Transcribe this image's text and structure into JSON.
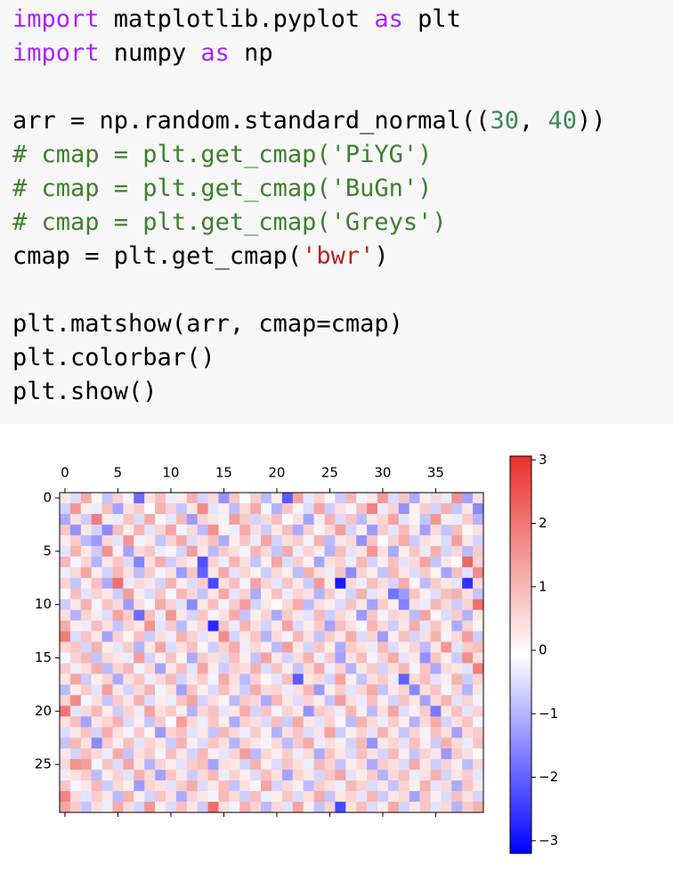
{
  "code": {
    "lines": [
      [
        {
          "text": "import",
          "kind": "keyword"
        },
        {
          "text": " matplotlib.pyplot "
        },
        {
          "text": "as",
          "kind": "keyword"
        },
        {
          "text": " plt"
        }
      ],
      [
        {
          "text": "import",
          "kind": "keyword"
        },
        {
          "text": " numpy "
        },
        {
          "text": "as",
          "kind": "keyword"
        },
        {
          "text": " np"
        }
      ],
      [],
      [
        {
          "text": "arr = np.random.standard_normal(("
        },
        {
          "text": "30",
          "kind": "number"
        },
        {
          "text": ", "
        },
        {
          "text": "40",
          "kind": "number"
        },
        {
          "text": "))"
        }
      ],
      [
        {
          "text": "# cmap = plt.get_cmap('PiYG')",
          "kind": "comment"
        }
      ],
      [
        {
          "text": "# cmap = plt.get_cmap('BuGn')",
          "kind": "comment"
        }
      ],
      [
        {
          "text": "# cmap = plt.get_cmap('Greys')",
          "kind": "comment"
        }
      ],
      [
        {
          "text": "cmap = plt.get_cmap("
        },
        {
          "text": "'bwr'",
          "kind": "string"
        },
        {
          "text": ")"
        }
      ],
      [],
      [
        {
          "text": "plt.matshow(arr, cmap=cmap)"
        }
      ],
      [
        {
          "text": "plt.colorbar()"
        }
      ],
      [
        {
          "text": "plt.show()"
        }
      ]
    ]
  },
  "chart_data": {
    "type": "heatmap",
    "xticks": [
      0,
      5,
      10,
      15,
      20,
      25,
      30,
      35
    ],
    "yticks": [
      0,
      5,
      10,
      15,
      20,
      25
    ],
    "xlim": [
      -0.5,
      39.5
    ],
    "ylim": [
      29.5,
      -0.5
    ],
    "zlim": [
      -3.2,
      3.06
    ],
    "zticks": [
      {
        "value": -3,
        "label": "−3"
      },
      {
        "value": -2,
        "label": "−2"
      },
      {
        "value": -1,
        "label": "−1"
      },
      0,
      1,
      2,
      3
    ],
    "colormap": [
      "#0000ff",
      "#ffffff",
      "#e8302c"
    ],
    "values": [
      [
        0.3,
        -0.5,
        1.2,
        0.1,
        -0.8,
        0.6,
        -0.2,
        -1.9,
        0.4,
        0.9,
        -0.3,
        0.2,
        1.1,
        -0.6,
        0.5,
        -1.4,
        0.8,
        -0.1,
        0.7,
        -0.9,
        0.2,
        -2.1,
        1.3,
        -0.4,
        0.6,
        0.1,
        -0.7,
        1.0,
        -0.2,
        0.3,
        1.4,
        -0.5,
        0.8,
        -1.1,
        0.2,
        0.5,
        -0.3,
        1.6,
        -1.2,
        0.4
      ],
      [
        -0.6,
        1.5,
        0.2,
        -0.3,
        0.9,
        -1.2,
        0.4,
        0.7,
        -0.1,
        1.1,
        0.6,
        -0.8,
        0.3,
        1.7,
        -0.4,
        0.2,
        -0.9,
        0.5,
        1.2,
        -0.2,
        -1.0,
        0.8,
        0.1,
        -0.5,
        1.3,
        -0.7,
        0.4,
        -0.2,
        0.9,
        1.8,
        -0.3,
        0.6,
        -1.4,
        0.2,
        0.7,
        -0.6,
        1.1,
        -0.8,
        0.3,
        -1.5
      ],
      [
        -1.1,
        0.4,
        -0.7,
        1.9,
        0.2,
        -0.3,
        0.8,
        -0.5,
        1.2,
        0.1,
        -0.4,
        1.0,
        -1.3,
        0.6,
        0.3,
        -0.2,
        1.4,
        0.7,
        -0.6,
        0.5,
        0.9,
        -0.1,
        0.4,
        -1.2,
        0.2,
        1.1,
        -0.5,
        0.8,
        -0.9,
        0.3,
        0.6,
        1.3,
        -0.4,
        0.1,
        -0.8,
        1.5,
        0.2,
        -0.3,
        0.7,
        -1.0
      ],
      [
        0.8,
        -1.4,
        0.3,
        -0.6,
        -1.5,
        0.9,
        0.2,
        1.1,
        -0.4,
        0.6,
        1.3,
        -0.2,
        0.5,
        -0.9,
        1.6,
        0.1,
        -0.3,
        1.2,
        0.4,
        -0.7,
        0.3,
        0.9,
        -1.1,
        0.6,
        -0.2,
        0.5,
        1.4,
        -0.6,
        0.2,
        -1.3,
        0.7,
        -0.4,
        1.0,
        0.3,
        -1.2,
        0.5,
        -0.8,
        0.9,
        0.1,
        0.4
      ],
      [
        0.2,
        0.7,
        -0.9,
        -1.3,
        0.5,
        -0.4,
        1.5,
        -0.2,
        0.3,
        -0.8,
        0.6,
        1.2,
        -0.5,
        0.4,
        0.9,
        -1.1,
        0.2,
        0.8,
        -0.3,
        1.3,
        -0.6,
        0.4,
        0.7,
        -0.2,
        1.1,
        -0.9,
        0.3,
        0.5,
        -1.4,
        0.8,
        -0.1,
        0.6,
        1.2,
        -0.7,
        0.4,
        0.2,
        -0.5,
        1.4,
        0.3,
        -0.6
      ],
      [
        -0.4,
        1.1,
        0.3,
        -0.7,
        1.6,
        0.2,
        -1.2,
        0.5,
        0.8,
        -0.3,
        0.1,
        -0.6,
        1.4,
        0.3,
        -0.9,
        0.7,
        0.4,
        -0.2,
        1.0,
        0.5,
        -0.8,
        1.2,
        -0.3,
        0.6,
        0.2,
        -1.0,
        0.9,
        -0.4,
        0.3,
        1.5,
        0.4,
        -1.1,
        0.2,
        0.8,
        -0.3,
        1.1,
        -0.6,
        0.5,
        -0.9,
        0.7
      ],
      [
        1.0,
        -0.2,
        0.6,
        -1.0,
        0.3,
        0.8,
        -0.5,
        -1.6,
        0.4,
        1.2,
        -0.7,
        0.5,
        0.2,
        -2.2,
        0.6,
        -0.3,
        1.1,
        0.4,
        -0.8,
        0.2,
        1.3,
        -0.5,
        0.7,
        0.1,
        -1.2,
        0.4,
        0.6,
        -0.3,
        1.0,
        -0.6,
        0.2,
        0.9,
        -0.4,
        0.5,
        1.3,
        -0.8,
        0.3,
        -0.1,
        2.2,
        0.6
      ],
      [
        -0.3,
        0.5,
        1.3,
        0.2,
        -0.6,
        1.0,
        0.4,
        -0.9,
        0.7,
        -0.2,
        0.4,
        -1.3,
        0.8,
        -2.0,
        0.3,
        1.2,
        -0.4,
        0.6,
        0.1,
        -0.7,
        0.5,
        0.2,
        -0.9,
        1.1,
        0.4,
        -0.3,
        0.8,
        -1.5,
        0.6,
        0.2,
        -0.8,
        1.0,
        0.3,
        -0.5,
        0.7,
        0.1,
        -1.2,
        0.9,
        -0.4,
        1.7
      ],
      [
        0.6,
        -0.8,
        0.2,
        0.9,
        -1.1,
        2.1,
        -0.3,
        0.5,
        0.3,
        -0.6,
        1.1,
        0.2,
        -0.5,
        0.7,
        -2.3,
        0.4,
        0.9,
        -0.2,
        1.3,
        0.6,
        -0.4,
        0.8,
        0.3,
        -0.7,
        1.4,
        0.2,
        -2.9,
        0.5,
        -0.3,
        0.9,
        0.4,
        -0.6,
        1.2,
        0.1,
        -0.9,
        0.7,
        0.3,
        -0.4,
        -2.6,
        0.5
      ],
      [
        0.1,
        0.9,
        -0.4,
        0.6,
        0.3,
        -0.7,
        1.4,
        0.2,
        -0.5,
        0.8,
        -0.2,
        1.0,
        0.5,
        -0.8,
        0.3,
        1.2,
        -0.4,
        0.6,
        -1.1,
        0.2,
        0.9,
        -0.3,
        0.6,
        0.4,
        -1.0,
        0.7,
        0.2,
        -0.6,
        1.1,
        -0.4,
        0.3,
        -1.8,
        -1.3,
        0.8,
        0.2,
        -0.5,
        0.9,
        1.1,
        0.4,
        -0.8
      ],
      [
        -0.7,
        0.3,
        1.1,
        -0.2,
        0.8,
        0.5,
        -1.3,
        0.4,
        0.1,
        1.2,
        0.6,
        -0.4,
        -1.5,
        0.3,
        0.9,
        -0.2,
        0.7,
        1.4,
        -0.6,
        0.3,
        -0.1,
        0.5,
        1.2,
        -0.9,
        0.4,
        0.2,
        -0.5,
        0.8,
        0.3,
        -1.2,
        0.7,
        0.2,
        -1.6,
        0.4,
        -0.3,
        1.0,
        0.5,
        -0.7,
        0.6,
        2.1
      ],
      [
        0.4,
        -1.0,
        0.6,
        0.2,
        -0.5,
        1.3,
        0.7,
        -1.9,
        0.9,
        -0.3,
        1.5,
        0.3,
        -0.6,
        0.8,
        -0.2,
        0.4,
        1.2,
        -0.8,
        0.2,
        0.6,
        -1.1,
        0.7,
        0.3,
        -0.4,
        1.0,
        -0.7,
        0.5,
        0.2,
        -1.3,
        0.8,
        -0.2,
        0.6,
        0.4,
        -0.9,
        1.3,
        0.1,
        -0.5,
        0.7,
        -1.0,
        0.3
      ],
      [
        1.2,
        0.2,
        -0.3,
        0.9,
        0.4,
        -0.8,
        0.6,
        0.3,
        1.5,
        -0.4,
        0.7,
        -0.9,
        0.2,
        0.5,
        -2.7,
        0.8,
        -0.3,
        1.1,
        0.4,
        -0.6,
        0.3,
        1.3,
        -0.5,
        0.2,
        0.7,
        -1.2,
        0.9,
        0.4,
        -0.2,
        1.0,
        0.5,
        -0.7,
        0.3,
        1.2,
        -0.4,
        0.8,
        0.2,
        -1.1,
        0.6,
        0.1
      ],
      [
        1.9,
        -0.5,
        0.8,
        0.3,
        -1.2,
        0.6,
        0.1,
        0.9,
        -0.7,
        0.4,
        -0.3,
        1.1,
        0.6,
        -0.4,
        0.2,
        1.7,
        -0.6,
        0.3,
        0.8,
        -1.0,
        0.5,
        -0.2,
        1.0,
        0.4,
        -0.8,
        0.7,
        0.3,
        1.2,
        -0.5,
        0.6,
        -1.3,
        0.2,
        0.9,
        -0.6,
        0.4,
        1.1,
        -0.2,
        0.5,
        1.4,
        -0.7
      ],
      [
        0.5,
        0.8,
        -0.6,
        1.1,
        0.2,
        -0.4,
        0.7,
        -1.0,
        0.3,
        1.3,
        -0.5,
        0.4,
        0.9,
        0.1,
        -0.7,
        0.6,
        1.2,
        -0.3,
        0.5,
        0.2,
        -0.9,
        1.4,
        0.3,
        -0.6,
        0.8,
        0.2,
        -1.1,
        0.7,
        0.4,
        -0.3,
        1.0,
        -0.5,
        0.2,
        0.6,
        -0.9,
        0.3,
        1.5,
        -0.4,
        0.7,
        0.9
      ],
      [
        -0.2,
        0.6,
        1.0,
        -0.8,
        0.5,
        0.3,
        -0.3,
        1.4,
        -0.6,
        0.2,
        0.8,
        0.1,
        -1.1,
        0.7,
        0.4,
        -0.5,
        0.9,
        0.2,
        -0.8,
        1.3,
        0.3,
        -0.6,
        0.5,
        1.1,
        -0.3,
        0.7,
        -1.2,
        0.4,
        0.9,
        -0.2,
        0.6,
        1.2,
        -0.4,
        0.3,
        -1.4,
        0.8,
        0.2,
        -0.7,
        1.6,
        0.4
      ],
      [
        0.7,
        -0.3,
        0.4,
        1.2,
        -0.9,
        0.6,
        1.0,
        -0.2,
        0.5,
        -1.2,
        0.3,
        0.9,
        -0.4,
        1.3,
        0.2,
        -0.7,
        0.6,
        0.4,
        1.1,
        -0.5,
        0.8,
        0.2,
        -0.8,
        0.5,
        1.2,
        -0.3,
        0.6,
        -1.0,
        0.3,
        0.7,
        -0.6,
        0.4,
        1.0,
        -0.2,
        0.8,
        -1.1,
        0.5,
        0.3,
        -0.4,
        1.9
      ],
      [
        0.3,
        1.3,
        -0.7,
        0.2,
        0.6,
        -1.1,
        0.4,
        0.8,
        -0.3,
        0.5,
        1.0,
        -0.6,
        0.3,
        0.7,
        -0.2,
        1.2,
        0.4,
        -0.9,
        0.6,
        0.1,
        -0.4,
        0.9,
        -2.1,
        0.3,
        0.5,
        -0.6,
        1.3,
        0.2,
        -0.8,
        0.4,
        0.7,
        -0.3,
        -2.0,
        0.5,
        0.9,
        -0.4,
        0.2,
        1.1,
        -0.7,
        0.6
      ],
      [
        -0.9,
        0.2,
        0.7,
        -0.4,
        1.4,
        0.3,
        -0.6,
        0.5,
        1.1,
        -0.2,
        0.4,
        -1.2,
        0.8,
        0.2,
        -0.5,
        0.9,
        0.3,
        -0.7,
        1.2,
        0.5,
        0.6,
        -0.3,
        0.4,
        1.0,
        -1.3,
        0.2,
        0.7,
        -0.4,
        0.5,
        1.2,
        -0.8,
        0.3,
        0.6,
        -1.5,
        0.4,
        0.8,
        -0.2,
        0.6,
        -1.0,
        0.3
      ],
      [
        0.6,
        1.7,
        -0.2,
        0.4,
        -0.8,
        0.7,
        0.3,
        1.1,
        -0.5,
        0.2,
        -0.3,
        0.8,
        1.3,
        -0.6,
        0.4,
        0.1,
        -0.9,
        0.7,
        0.5,
        -1.1,
        1.0,
        0.3,
        -0.5,
        0.6,
        0.2,
        -0.8,
        1.4,
        0.4,
        -0.3,
        0.9,
        0.2,
        -0.6,
        0.8,
        0.3,
        -1.2,
        0.5,
        1.1,
        -0.4,
        0.6,
        -0.2
      ],
      [
        2.0,
        -0.4,
        0.5,
        1.0,
        0.2,
        -0.7,
        0.6,
        -0.3,
        1.3,
        0.4,
        0.7,
        0.2,
        -1.0,
        0.5,
        0.9,
        -0.4,
        0.3,
        1.2,
        -0.6,
        0.8,
        -0.2,
        0.6,
        0.3,
        -1.4,
        0.7,
        0.5,
        -0.3,
        1.0,
        0.2,
        -0.9,
        0.4,
        1.3,
        -0.5,
        0.2,
        0.7,
        -1.7,
        0.3,
        0.9,
        -0.4,
        0.6
      ],
      [
        0.4,
        0.9,
        -1.2,
        0.3,
        0.6,
        1.1,
        -0.5,
        0.2,
        -0.8,
        0.7,
        -0.1,
        1.4,
        0.5,
        -0.3,
        0.8,
        0.2,
        -1.1,
        0.6,
        0.4,
        -0.5,
        0.9,
        -0.7,
        1.2,
        0.3,
        -0.4,
        0.6,
        0.1,
        -0.9,
        1.1,
        0.5,
        -0.3,
        0.7,
        0.2,
        -1.0,
        0.5,
        1.2,
        -0.6,
        0.4,
        0.8,
        -0.2
      ],
      [
        -0.5,
        0.3,
        0.8,
        -0.6,
        1.2,
        0.4,
        -0.2,
        0.7,
        0.1,
        -1.3,
        0.6,
        0.9,
        -0.4,
        0.3,
        -0.8,
        1.0,
        0.5,
        -0.3,
        0.7,
        0.2,
        -1.0,
        0.4,
        0.8,
        -0.5,
        0.3,
        1.3,
        -0.7,
        0.2,
        0.6,
        -0.4,
        1.1,
        0.3,
        -0.8,
        0.6,
        -0.2,
        0.9,
        0.4,
        -1.2,
        0.5,
        0.7
      ],
      [
        -0.8,
        1.0,
        0.4,
        -1.5,
        0.7,
        0.2,
        0.9,
        -0.4,
        0.6,
        0.3,
        -0.7,
        1.1,
        0.2,
        -0.5,
        0.8,
        0.4,
        -1.0,
        0.6,
        0.3,
        -0.2,
        0.5,
        -0.9,
        0.7,
        1.2,
        -0.3,
        0.4,
        0.2,
        -0.6,
        1.0,
        -1.4,
        0.3,
        0.6,
        -0.4,
        0.9,
        0.2,
        -0.7,
        1.1,
        0.5,
        -0.3,
        0.8
      ],
      [
        0.3,
        -0.6,
        0.9,
        0.5,
        -0.3,
        1.2,
        -0.8,
        0.4,
        0.7,
        -0.2,
        0.9,
        0.3,
        -0.6,
        1.0,
        0.2,
        -0.4,
        0.6,
        1.4,
        -0.9,
        0.5,
        0.2,
        0.7,
        -0.3,
        0.5,
        -1.1,
        0.8,
        0.3,
        -0.5,
        0.9,
        0.4,
        -0.6,
        1.0,
        0.2,
        -0.8,
        0.6,
        0.3,
        -1.3,
        0.7,
        0.4,
        -0.1
      ],
      [
        0.5,
        1.6,
        1.4,
        -0.2,
        0.8,
        -0.5,
        1.3,
        0.3,
        -1.0,
        0.6,
        0.2,
        -0.4,
        0.7,
        0.9,
        -1.2,
        0.4,
        0.3,
        -0.6,
        1.1,
        0.2,
        -0.5,
        0.8,
        0.4,
        -0.3,
        1.0,
        0.6,
        -0.8,
        0.2,
        0.5,
        -1.1,
        0.7,
        0.4,
        -0.5,
        1.2,
        0.3,
        -0.7,
        0.6,
        0.2,
        -0.9,
        0.5
      ],
      [
        -0.3,
        0.4,
        0.7,
        -0.9,
        0.2,
        0.6,
        -0.4,
        1.1,
        0.5,
        -1.2,
        0.8,
        0.3,
        -0.7,
        0.5,
        1.0,
        -0.3,
        0.6,
        0.2,
        -0.5,
        0.9,
        0.4,
        -1.2,
        0.6,
        0.3,
        -0.6,
        0.8,
        1.3,
        -0.4,
        0.2,
        0.7,
        -1.0,
        0.5,
        0.9,
        -0.3,
        0.4,
        1.1,
        -0.6,
        0.3,
        0.7,
        -0.4
      ],
      [
        0.8,
        -0.2,
        0.3,
        1.0,
        -0.7,
        0.5,
        0.2,
        -1.3,
        0.6,
        0.4,
        -0.4,
        0.7,
        1.2,
        -0.5,
        0.3,
        0.9,
        -0.8,
        0.4,
        0.1,
        1.3,
        -0.6,
        0.5,
        0.2,
        -0.9,
        0.7,
        0.4,
        -0.3,
        1.0,
        0.6,
        -0.5,
        0.3,
        -0.8,
        0.6,
        0.2,
        1.1,
        -0.4,
        0.5,
        -1.1,
        0.8,
        0.3
      ],
      [
        1.8,
        0.5,
        -0.4,
        0.7,
        0.3,
        -0.9,
        1.1,
        0.2,
        -0.6,
        0.8,
        0.4,
        -1.1,
        0.6,
        0.3,
        -0.2,
        1.0,
        0.5,
        -0.7,
        0.9,
        -0.3,
        0.2,
        0.8,
        -0.5,
        0.4,
        1.2,
        -0.8,
        0.3,
        0.6,
        -0.4,
        1.0,
        -0.7,
        0.3,
        0.5,
        -1.2,
        0.8,
        0.2,
        -0.5,
        0.9,
        0.4,
        -0.6
      ],
      [
        1.3,
        0.7,
        -0.8,
        0.4,
        -0.3,
        1.2,
        0.5,
        -0.6,
        1.5,
        0.2,
        -0.5,
        0.9,
        0.3,
        -0.7,
        2.1,
        0.4,
        -0.2,
        1.1,
        0.6,
        -0.9,
        0.5,
        -0.4,
        1.3,
        0.2,
        -0.8,
        0.6,
        -2.3,
        0.4,
        0.9,
        -0.5,
        0.2,
        1.2,
        -0.6,
        0.3,
        0.8,
        -0.4,
        0.5,
        -1.0,
        0.7,
        1.1
      ]
    ]
  }
}
